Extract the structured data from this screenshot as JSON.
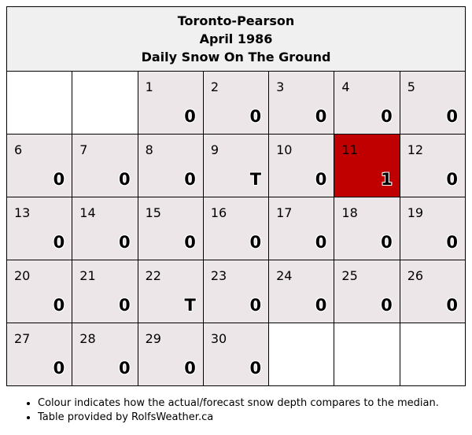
{
  "header": {
    "station": "Toronto-Pearson",
    "month": "April 1986",
    "subtitle": "Daily Snow On The Ground"
  },
  "colors": {
    "cell": "#ede6e8",
    "highlight": "#c00000",
    "header_bg": "#f0f0f0"
  },
  "weeks": [
    [
      {
        "day": "",
        "value": ""
      },
      {
        "day": "",
        "value": ""
      },
      {
        "day": "1",
        "value": "0"
      },
      {
        "day": "2",
        "value": "0"
      },
      {
        "day": "3",
        "value": "0"
      },
      {
        "day": "4",
        "value": "0"
      },
      {
        "day": "5",
        "value": "0"
      }
    ],
    [
      {
        "day": "6",
        "value": "0"
      },
      {
        "day": "7",
        "value": "0"
      },
      {
        "day": "8",
        "value": "0"
      },
      {
        "day": "9",
        "value": "T"
      },
      {
        "day": "10",
        "value": "0"
      },
      {
        "day": "11",
        "value": "1",
        "highlight": true
      },
      {
        "day": "12",
        "value": "0"
      }
    ],
    [
      {
        "day": "13",
        "value": "0"
      },
      {
        "day": "14",
        "value": "0"
      },
      {
        "day": "15",
        "value": "0"
      },
      {
        "day": "16",
        "value": "0"
      },
      {
        "day": "17",
        "value": "0"
      },
      {
        "day": "18",
        "value": "0"
      },
      {
        "day": "19",
        "value": "0"
      }
    ],
    [
      {
        "day": "20",
        "value": "0"
      },
      {
        "day": "21",
        "value": "0"
      },
      {
        "day": "22",
        "value": "T"
      },
      {
        "day": "23",
        "value": "0"
      },
      {
        "day": "24",
        "value": "0"
      },
      {
        "day": "25",
        "value": "0"
      },
      {
        "day": "26",
        "value": "0"
      }
    ],
    [
      {
        "day": "27",
        "value": "0"
      },
      {
        "day": "28",
        "value": "0"
      },
      {
        "day": "29",
        "value": "0"
      },
      {
        "day": "30",
        "value": "0"
      },
      {
        "day": "",
        "value": ""
      },
      {
        "day": "",
        "value": ""
      },
      {
        "day": "",
        "value": ""
      }
    ]
  ],
  "notes": [
    "Colour indicates how the actual/forecast snow depth compares to the median.",
    "Table provided by RolfsWeather.ca"
  ]
}
